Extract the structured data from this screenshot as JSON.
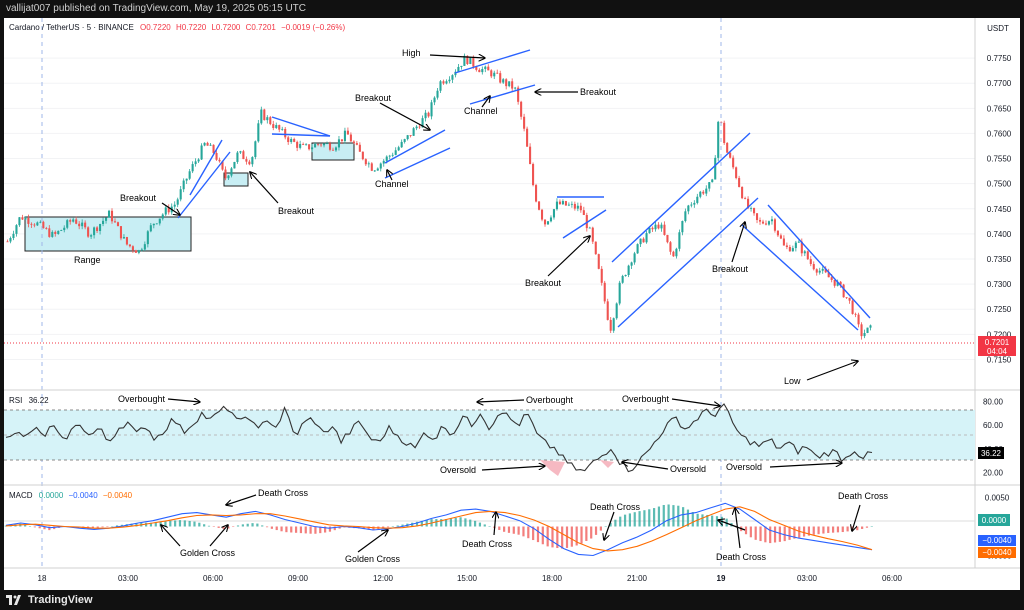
{
  "header": {
    "published_by": "vallijat007 published on TradingView.com, May 19, 2025 05:15 UTC"
  },
  "legend": {
    "symbol": "Cardano / TetherUS · 5 · BINANCE",
    "open": "O0.7220",
    "high": "H0.7220",
    "low": "L0.7200",
    "close": "C0.7201",
    "change": "−0.0019 (−0.26%)"
  },
  "footer": {
    "brand": "TradingView"
  },
  "colors": {
    "up": "#26a69a",
    "down": "#ef5350",
    "pattern_line": "#2962ff",
    "range_fill": "#b2ebf2",
    "rsi_line": "#333333",
    "rsi_band": "#d6f3f8",
    "macd_line": "#2962ff",
    "signal_line": "#ff6d00",
    "price_tag": "#f23645"
  },
  "chart_data": [
    {
      "type": "line",
      "panel": "price",
      "unit": "USDT",
      "y_ticks": [
        "0.7750",
        "0.7700",
        "0.7650",
        "0.7600",
        "0.7550",
        "0.7500",
        "0.7450",
        "0.7400",
        "0.7350",
        "0.7300",
        "0.7250",
        "0.7200",
        "0.7150"
      ],
      "ylim": [
        0.7125,
        0.779
      ],
      "x_ticks": [
        "18",
        "03:00",
        "06:00",
        "09:00",
        "12:00",
        "15:00",
        "18:00",
        "21:00",
        "19",
        "03:00",
        "06:00"
      ],
      "last_price": "0.7201",
      "countdown": "04:04",
      "close_path": [
        {
          "t": 0,
          "v": 0.7385
        },
        {
          "t": 4,
          "v": 0.7435
        },
        {
          "t": 9,
          "v": 0.742
        },
        {
          "t": 14,
          "v": 0.7395
        },
        {
          "t": 20,
          "v": 0.743
        },
        {
          "t": 25,
          "v": 0.74
        },
        {
          "t": 31,
          "v": 0.744
        },
        {
          "t": 36,
          "v": 0.738
        },
        {
          "t": 40,
          "v": 0.7365
        },
        {
          "t": 44,
          "v": 0.742
        },
        {
          "t": 48,
          "v": 0.7445
        },
        {
          "t": 51,
          "v": 0.746
        },
        {
          "t": 55,
          "v": 0.752
        },
        {
          "t": 60,
          "v": 0.758
        },
        {
          "t": 63,
          "v": 0.756
        },
        {
          "t": 66,
          "v": 0.751
        },
        {
          "t": 70,
          "v": 0.756
        },
        {
          "t": 74,
          "v": 0.7545
        },
        {
          "t": 77,
          "v": 0.764
        },
        {
          "t": 81,
          "v": 0.7615
        },
        {
          "t": 86,
          "v": 0.7585
        },
        {
          "t": 90,
          "v": 0.757
        },
        {
          "t": 95,
          "v": 0.758
        },
        {
          "t": 99,
          "v": 0.7575
        },
        {
          "t": 103,
          "v": 0.76
        },
        {
          "t": 107,
          "v": 0.756
        },
        {
          "t": 111,
          "v": 0.753
        },
        {
          "t": 115,
          "v": 0.755
        },
        {
          "t": 120,
          "v": 0.758
        },
        {
          "t": 125,
          "v": 0.762
        },
        {
          "t": 128,
          "v": 0.764
        },
        {
          "t": 131,
          "v": 0.77
        },
        {
          "t": 135,
          "v": 0.772
        },
        {
          "t": 139,
          "v": 0.775
        },
        {
          "t": 143,
          "v": 0.773
        },
        {
          "t": 147,
          "v": 0.772
        },
        {
          "t": 151,
          "v": 0.77
        },
        {
          "t": 154,
          "v": 0.769
        },
        {
          "t": 157,
          "v": 0.76
        },
        {
          "t": 160,
          "v": 0.748
        },
        {
          "t": 163,
          "v": 0.742
        },
        {
          "t": 167,
          "v": 0.746
        },
        {
          "t": 171,
          "v": 0.7455
        },
        {
          "t": 174,
          "v": 0.745
        },
        {
          "t": 177,
          "v": 0.74
        },
        {
          "t": 180,
          "v": 0.731
        },
        {
          "t": 183,
          "v": 0.721
        },
        {
          "t": 186,
          "v": 0.73
        },
        {
          "t": 190,
          "v": 0.736
        },
        {
          "t": 194,
          "v": 0.74
        },
        {
          "t": 198,
          "v": 0.742
        },
        {
          "t": 202,
          "v": 0.735
        },
        {
          "t": 206,
          "v": 0.745
        },
        {
          "t": 210,
          "v": 0.748
        },
        {
          "t": 214,
          "v": 0.75
        },
        {
          "t": 216,
          "v": 0.764
        },
        {
          "t": 218,
          "v": 0.757
        },
        {
          "t": 221,
          "v": 0.752
        },
        {
          "t": 224,
          "v": 0.746
        },
        {
          "t": 228,
          "v": 0.742
        },
        {
          "t": 232,
          "v": 0.743
        },
        {
          "t": 236,
          "v": 0.737
        },
        {
          "t": 240,
          "v": 0.738
        },
        {
          "t": 244,
          "v": 0.734
        },
        {
          "t": 248,
          "v": 0.732
        },
        {
          "t": 252,
          "v": 0.73
        },
        {
          "t": 256,
          "v": 0.726
        },
        {
          "t": 259,
          "v": 0.72
        },
        {
          "t": 262,
          "v": 0.721
        }
      ],
      "annotations": [
        {
          "label": "Range"
        },
        {
          "label": "Breakout"
        },
        {
          "label": "Breakout"
        },
        {
          "label": "Breakout"
        },
        {
          "label": "Channel"
        },
        {
          "label": "High"
        },
        {
          "label": "Channel"
        },
        {
          "label": "Breakout"
        },
        {
          "label": "Breakout"
        },
        {
          "label": "Breakout"
        },
        {
          "label": "Low"
        }
      ]
    },
    {
      "type": "line",
      "panel": "rsi",
      "title": "RSI",
      "current": "36.22",
      "y_ticks": [
        "80.00",
        "60.00",
        "40.00",
        "20.00"
      ],
      "ylim": [
        12,
        88
      ],
      "band": [
        30,
        70
      ],
      "series": [
        {
          "values": [
            52,
            55,
            48,
            58,
            50,
            60,
            46,
            55,
            62,
            50,
            58,
            45,
            57,
            63,
            52,
            60,
            48,
            56,
            66,
            54,
            61,
            70,
            64,
            72,
            75,
            60,
            70,
            54,
            66,
            58,
            74,
            50,
            62,
            66,
            52,
            60,
            46,
            55,
            63,
            50,
            44,
            58,
            52,
            45,
            40,
            55,
            48,
            60,
            52,
            68,
            60,
            72,
            56,
            74,
            66,
            60,
            70,
            52,
            44,
            40,
            30,
            24,
            20,
            28,
            34,
            42,
            28,
            22,
            30,
            38,
            50,
            60,
            66,
            56,
            64,
            72,
            68,
            78,
            62,
            50,
            46,
            42,
            48,
            40,
            45,
            38,
            42,
            33,
            36,
            38,
            30,
            40,
            33,
            36
          ]
        }
      ],
      "annotations": [
        {
          "label": "Overbought"
        },
        {
          "label": "Overbought"
        },
        {
          "label": "Overbought"
        },
        {
          "label": "Oversold"
        },
        {
          "label": "Oversold"
        },
        {
          "label": "Oversold"
        }
      ]
    },
    {
      "type": "line",
      "panel": "macd",
      "title": "MACD",
      "params": "0.0000",
      "legend_values": [
        "−0.0040",
        "−0.0040"
      ],
      "y_ticks": [
        "0.0050",
        "0.0000",
        "−0.0050"
      ],
      "ylim": [
        -0.0068,
        0.0068
      ],
      "tags": [
        "0.0000",
        "−0.0040",
        "−0.0040"
      ],
      "series": [
        {
          "values": [
            0.0002,
            0.0006,
            0.0003,
            -0.0002,
            0.0,
            -0.0003,
            -0.0005,
            -0.0003,
            0.0001,
            0.0006,
            0.001,
            0.0016,
            0.0022,
            0.0024,
            0.002,
            0.0016,
            0.0022,
            0.0026,
            0.002,
            0.0012,
            0.0006,
            0.0,
            -0.0003,
            0.0,
            -0.0002,
            -0.0006,
            -0.0004,
            0.0,
            0.0006,
            0.0014,
            0.002,
            0.0028,
            0.003,
            0.0026,
            0.0018,
            0.001,
            -0.0004,
            -0.0022,
            -0.0038,
            -0.0048,
            -0.005,
            -0.004,
            -0.0028,
            -0.0018,
            -0.0006,
            0.001,
            0.002,
            0.0024,
            0.0032,
            0.004,
            0.003,
            0.0012,
            -0.0006,
            -0.0014,
            -0.002,
            -0.0024,
            -0.0028,
            -0.0032,
            -0.0036,
            -0.004
          ]
        },
        {
          "values": [
            0.0001,
            0.0003,
            0.0004,
            0.0002,
            0.0,
            -0.0001,
            -0.0003,
            -0.0003,
            -0.0001,
            0.0002,
            0.0006,
            0.001,
            0.0015,
            0.0019,
            0.002,
            0.0019,
            0.002,
            0.0022,
            0.0022,
            0.0018,
            0.0013,
            0.0008,
            0.0003,
            0.0001,
            0.0,
            -0.0002,
            -0.0003,
            -0.0002,
            0.0001,
            0.0006,
            0.0012,
            0.0018,
            0.0024,
            0.0026,
            0.0024,
            0.0019,
            0.0011,
            0.0,
            -0.0014,
            -0.0028,
            -0.0038,
            -0.0042,
            -0.004,
            -0.0034,
            -0.0025,
            -0.0014,
            -0.0002,
            0.001,
            0.002,
            0.003,
            0.0034,
            0.0026,
            0.0012,
            0.0002,
            -0.0008,
            -0.0015,
            -0.0021,
            -0.0026,
            -0.0032,
            -0.004
          ]
        }
      ],
      "annotations": [
        {
          "label": "Death Cross"
        },
        {
          "label": "Golden Cross"
        },
        {
          "label": "Golden Cross"
        },
        {
          "label": "Death Cross"
        },
        {
          "label": "Death Cross"
        },
        {
          "label": "Death Cross"
        },
        {
          "label": "Death Cross"
        }
      ]
    }
  ]
}
